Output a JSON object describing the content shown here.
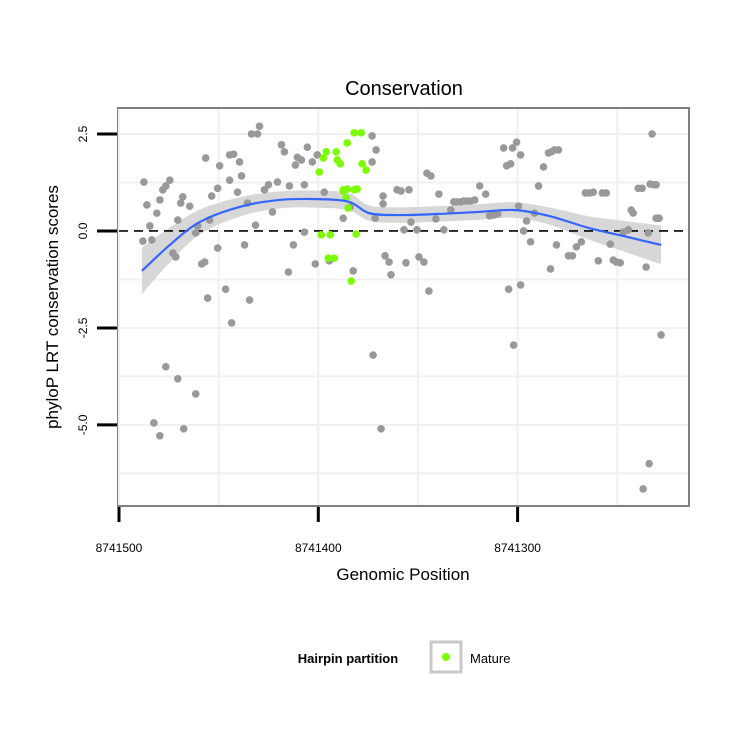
{
  "chart_data": {
    "type": "scatter",
    "title": "Conservation",
    "xlabel": "Genomic Position",
    "ylabel": "phyloP LRT conservation scores",
    "x_reversed": true,
    "xlim": [
      8741500.5,
      8741214
    ],
    "ylim": [
      -7.09,
      3.17
    ],
    "x_ticks": [
      {
        "value": 8741500,
        "label": "8741500"
      },
      {
        "value": 8741400,
        "label": "8741400"
      },
      {
        "value": 8741300,
        "label": "8741300"
      }
    ],
    "y_ticks": [
      {
        "value": 2.5,
        "label": "2.5"
      },
      {
        "value": 0,
        "label": "0.0"
      },
      {
        "value": -2.5,
        "label": "-2.5"
      },
      {
        "value": -5,
        "label": "-5.0"
      }
    ],
    "reference_line": {
      "y": 0,
      "style": "dashed"
    },
    "grid": true,
    "legend": {
      "title": "Hairpin partition",
      "placement": "bottom",
      "entries": [
        {
          "label": "Mature",
          "color": "#7CFC00"
        }
      ]
    },
    "colors": {
      "other": "#999999",
      "mature": "#7CFC00",
      "smooth": "#3366FF",
      "band": "#D3D3D3"
    },
    "series": [
      {
        "name": "Other",
        "points": [
          [
            8741487.5,
            1.26
          ],
          [
            8741486,
            0.67
          ],
          [
            8741488,
            -0.26
          ],
          [
            8741484.5,
            0.13
          ],
          [
            8741483.5,
            -0.23
          ],
          [
            8741481,
            0.46
          ],
          [
            8741479.5,
            0.8
          ],
          [
            8741478,
            1.06
          ],
          [
            8741476.5,
            1.16
          ],
          [
            8741474.5,
            1.31
          ],
          [
            8741473,
            -0.57
          ],
          [
            8741471.5,
            -0.67
          ],
          [
            8741470.5,
            0.28
          ],
          [
            8741469,
            0.72
          ],
          [
            8741468,
            0.88
          ],
          [
            8741464.5,
            0.64
          ],
          [
            8741461.5,
            -0.05
          ],
          [
            8741460.5,
            0.13
          ],
          [
            8741458.5,
            -0.85
          ],
          [
            8741457,
            -0.8
          ],
          [
            8741456.5,
            1.88
          ],
          [
            8741455.5,
            -1.73
          ],
          [
            8741454.5,
            0.28
          ],
          [
            8741453.5,
            0.9
          ],
          [
            8741450.5,
            1.1
          ],
          [
            8741449.5,
            1.68
          ],
          [
            8741450.5,
            -0.44
          ],
          [
            8741446.5,
            -1.5
          ],
          [
            8741444.5,
            1.31
          ],
          [
            8741444.5,
            1.96
          ],
          [
            8741442.5,
            1.98
          ],
          [
            8741443.5,
            -2.37
          ],
          [
            8741440.5,
            1.0
          ],
          [
            8741439.5,
            1.78
          ],
          [
            8741438.5,
            1.42
          ],
          [
            8741437,
            -0.36
          ],
          [
            8741435.5,
            0.72
          ],
          [
            8741434.5,
            -1.78
          ],
          [
            8741433.5,
            2.5
          ],
          [
            8741431.5,
            0.15
          ],
          [
            8741430.5,
            2.5
          ],
          [
            8741429.5,
            2.7
          ],
          [
            8741427,
            1.06
          ],
          [
            8741425,
            1.19
          ],
          [
            8741423,
            0.49
          ],
          [
            8741420.5,
            1.26
          ],
          [
            8741418.5,
            2.22
          ],
          [
            8741417,
            2.04
          ],
          [
            8741415,
            -1.06
          ],
          [
            8741414.5,
            1.16
          ],
          [
            8741412.5,
            -0.36
          ],
          [
            8741411.5,
            1.7
          ],
          [
            8741410.5,
            1.9
          ],
          [
            8741408.5,
            1.83
          ],
          [
            8741407,
            1.19
          ],
          [
            8741407,
            -0.03
          ],
          [
            8741405.5,
            2.16
          ],
          [
            8741403,
            1.78
          ],
          [
            8741401.5,
            -0.85
          ],
          [
            8741400.5,
            1.96
          ],
          [
            8741397,
            1.0
          ],
          [
            8741394.5,
            -0.77
          ],
          [
            8741387.5,
            0.33
          ],
          [
            8741384,
            0.62
          ],
          [
            8741382.5,
            -1.03
          ],
          [
            8741373,
            2.45
          ],
          [
            8741371,
            2.09
          ],
          [
            8741373,
            1.78
          ],
          [
            8741372.5,
            -3.2
          ],
          [
            8741371.5,
            0.33
          ],
          [
            8741367.5,
            0.7
          ],
          [
            8741367.5,
            0.9
          ],
          [
            8741366.5,
            -0.64
          ],
          [
            8741364.5,
            -0.8
          ],
          [
            8741363.5,
            -1.13
          ],
          [
            8741368.5,
            -5.1
          ],
          [
            8741360.5,
            1.06
          ],
          [
            8741358.5,
            1.03
          ],
          [
            8741357,
            0.03
          ],
          [
            8741356,
            -0.82
          ],
          [
            8741354.5,
            1.06
          ],
          [
            8741353.5,
            0.23
          ],
          [
            8741350.5,
            0.03
          ],
          [
            8741349.5,
            -0.67
          ],
          [
            8741347,
            -0.8
          ],
          [
            8741345.5,
            1.49
          ],
          [
            8741343.5,
            1.42
          ],
          [
            8741344.5,
            -1.55
          ],
          [
            8741341,
            0.31
          ],
          [
            8741339.5,
            0.95
          ],
          [
            8741337,
            0.03
          ],
          [
            8741333.5,
            0.54
          ],
          [
            8741332,
            0.75
          ],
          [
            8741330.5,
            0.75
          ],
          [
            8741328.5,
            0.75
          ],
          [
            8741327,
            0.77
          ],
          [
            8741325.5,
            0.77
          ],
          [
            8741323.5,
            0.77
          ],
          [
            8741321.5,
            0.8
          ],
          [
            8741319,
            1.16
          ],
          [
            8741316,
            0.95
          ],
          [
            8741314,
            0.39
          ],
          [
            8741312,
            0.41
          ],
          [
            8741310,
            0.44
          ],
          [
            8741307,
            2.14
          ],
          [
            8741305.5,
            1.68
          ],
          [
            8741304.5,
            -1.5
          ],
          [
            8741303.5,
            1.73
          ],
          [
            8741302.5,
            2.14
          ],
          [
            8741302,
            -2.94
          ],
          [
            8741300.5,
            2.29
          ],
          [
            8741298.5,
            1.96
          ],
          [
            8741298.5,
            -1.39
          ],
          [
            8741299.5,
            0.64
          ],
          [
            8741297,
            0.0
          ],
          [
            8741295.5,
            0.26
          ],
          [
            8741293.5,
            -0.28
          ],
          [
            8741291.5,
            0.46
          ],
          [
            8741289.5,
            1.16
          ],
          [
            8741287,
            1.65
          ],
          [
            8741284.5,
            2.01
          ],
          [
            8741283,
            2.04
          ],
          [
            8741281.5,
            2.09
          ],
          [
            8741279.5,
            2.09
          ],
          [
            8741283.5,
            -0.98
          ],
          [
            8741280.5,
            -0.36
          ],
          [
            8741274.5,
            -0.64
          ],
          [
            8741272.5,
            -0.64
          ],
          [
            8741270.5,
            -0.41
          ],
          [
            8741268,
            -0.28
          ],
          [
            8741266,
            0.98
          ],
          [
            8741264,
            0.98
          ],
          [
            8741262,
            1.0
          ],
          [
            8741259.5,
            -0.77
          ],
          [
            8741257.5,
            0.98
          ],
          [
            8741255.5,
            0.98
          ],
          [
            8741253.5,
            -0.34
          ],
          [
            8741252,
            -0.75
          ],
          [
            8741250.5,
            -0.8
          ],
          [
            8741248.5,
            -0.82
          ],
          [
            8741247,
            -0.03
          ],
          [
            8741244.5,
            0.03
          ],
          [
            8741243,
            0.54
          ],
          [
            8741242,
            0.46
          ],
          [
            8741239.5,
            1.1
          ],
          [
            8741237.5,
            1.1
          ],
          [
            8741235.5,
            -0.93
          ],
          [
            8741234.5,
            -0.05
          ],
          [
            8741233.5,
            1.21
          ],
          [
            8741231.5,
            1.19
          ],
          [
            8741230.5,
            0.33
          ],
          [
            8741229.5,
            0.33
          ],
          [
            8741229,
            0.33
          ],
          [
            8741232.5,
            2.5
          ],
          [
            8741230.5,
            1.19
          ],
          [
            8741237,
            -6.65
          ],
          [
            8741234,
            -6.0
          ],
          [
            8741228,
            -2.68
          ],
          [
            8741482.5,
            -4.95
          ],
          [
            8741479.5,
            -5.28
          ],
          [
            8741476.5,
            -3.5
          ],
          [
            8741470.5,
            -3.81
          ],
          [
            8741467.5,
            -5.1
          ],
          [
            8741461.5,
            -4.2
          ]
        ]
      },
      {
        "name": "Mature",
        "points": [
          [
            8741399.5,
            1.52
          ],
          [
            8741397.5,
            1.88
          ],
          [
            8741396,
            2.04
          ],
          [
            8741391,
            2.04
          ],
          [
            8741390.5,
            1.83
          ],
          [
            8741389,
            1.73
          ],
          [
            8741387.5,
            1.03
          ],
          [
            8741386,
            0.85
          ],
          [
            8741385,
            0.59
          ],
          [
            8741385.5,
            2.27
          ],
          [
            8741382,
            2.53
          ],
          [
            8741378.5,
            2.53
          ],
          [
            8741378,
            1.73
          ],
          [
            8741376,
            1.57
          ],
          [
            8741398.5,
            -0.1
          ],
          [
            8741394,
            -0.1
          ],
          [
            8741381,
            -0.08
          ],
          [
            8741395,
            -0.7
          ],
          [
            8741392,
            -0.7
          ],
          [
            8741383.5,
            -1.29
          ],
          [
            8741387.5,
            1.06
          ],
          [
            8741385.5,
            1.08
          ],
          [
            8741382,
            1.06
          ],
          [
            8741380.5,
            1.08
          ]
        ]
      }
    ],
    "smooth": {
      "x": [
        8741488.5,
        8741474.5,
        8741459.5,
        8741439.5,
        8741419.5,
        8741400,
        8741384.5,
        8741374.5,
        8741359.5,
        8741339.5,
        8741319.5,
        8741302,
        8741284.5,
        8741264.5,
        8741249.5,
        8741228
      ],
      "y": [
        -1.03,
        -0.36,
        0.23,
        0.62,
        0.8,
        0.82,
        0.75,
        0.46,
        0.41,
        0.44,
        0.49,
        0.54,
        0.39,
        0.08,
        -0.1,
        -0.36
      ],
      "se": [
        0.6,
        0.45,
        0.32,
        0.25,
        0.22,
        0.22,
        0.22,
        0.2,
        0.2,
        0.2,
        0.2,
        0.2,
        0.22,
        0.3,
        0.38,
        0.5
      ]
    }
  }
}
